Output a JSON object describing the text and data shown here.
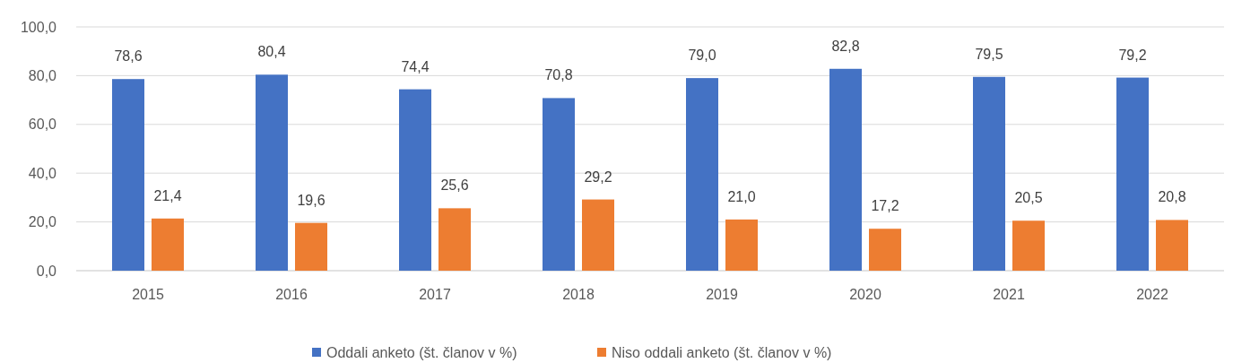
{
  "chart_data": {
    "type": "bar",
    "categories": [
      "2015",
      "2016",
      "2017",
      "2018",
      "2019",
      "2020",
      "2021",
      "2022"
    ],
    "series": [
      {
        "name": "Oddali anketo (št. članov v %)",
        "color": "#4472c4",
        "values": [
          78.6,
          80.4,
          74.4,
          70.8,
          79.0,
          82.8,
          79.5,
          79.2
        ],
        "value_labels": [
          "78,6",
          "80,4",
          "74,4",
          "70,8",
          "79,0",
          "82,8",
          "79,5",
          "79,2"
        ]
      },
      {
        "name": "Niso oddali anketo (št. članov v %)",
        "color": "#ed7d31",
        "values": [
          21.4,
          19.6,
          25.6,
          29.2,
          21.0,
          17.2,
          20.5,
          20.8
        ],
        "value_labels": [
          "21,4",
          "19,6",
          "25,6",
          "29,2",
          "21,0",
          "17,2",
          "20,5",
          "20,8"
        ]
      }
    ],
    "ylim": [
      0,
      100
    ],
    "yticks": [
      {
        "value": 0,
        "label": "0,0"
      },
      {
        "value": 20,
        "label": "20,0"
      },
      {
        "value": 40,
        "label": "40,0"
      },
      {
        "value": 60,
        "label": "60,0"
      },
      {
        "value": 80,
        "label": "80,0"
      },
      {
        "value": 100,
        "label": "100,0"
      }
    ],
    "grid": "y",
    "legend": "bottom"
  }
}
